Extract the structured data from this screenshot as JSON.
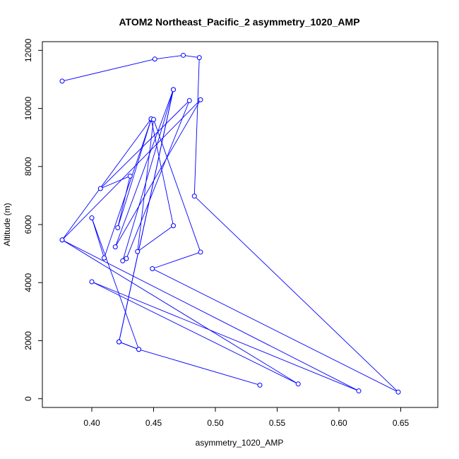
{
  "chart_data": {
    "type": "scatter",
    "title": "ATOM2 Northeast_Pacific_2 asymmetry_1020_AMP",
    "xlabel": "asymmetry_1020_AMP",
    "ylabel": "Altitude (m)",
    "xlim": [
      0.36,
      0.68
    ],
    "ylim": [
      -300,
      12300
    ],
    "x_ticks": [
      0.4,
      0.45,
      0.5,
      0.55,
      0.6,
      0.65
    ],
    "x_tick_labels": [
      "0.40",
      "0.45",
      "0.50",
      "0.55",
      "0.60",
      "0.65"
    ],
    "y_ticks": [
      0,
      2000,
      4000,
      6000,
      8000,
      10000,
      12000
    ],
    "y_tick_labels": [
      "0",
      "2000",
      "4000",
      "6000",
      "8000",
      "10000",
      "12000"
    ],
    "grid": false,
    "legend": "none",
    "series": [
      {
        "color": "#0000ff",
        "marker": "open-circle",
        "connected": true,
        "points": [
          [
            0.536,
            470
          ],
          [
            0.438,
            1700
          ],
          [
            0.422,
            1960
          ],
          [
            0.466,
            10650
          ],
          [
            0.425,
            4750
          ],
          [
            0.428,
            4830
          ],
          [
            0.479,
            10270
          ],
          [
            0.407,
            7240
          ],
          [
            0.431,
            7670
          ],
          [
            0.421,
            5890
          ],
          [
            0.448,
            9620
          ],
          [
            0.41,
            4850
          ],
          [
            0.4,
            6230
          ],
          [
            0.438,
            1700
          ],
          [
            0.422,
            1960
          ],
          [
            0.466,
            10650
          ],
          [
            0.419,
            5230
          ],
          [
            0.488,
            10300
          ],
          [
            0.376,
            5470
          ],
          [
            0.616,
            270
          ],
          [
            0.4,
            4030
          ],
          [
            0.567,
            510
          ],
          [
            0.376,
            5470
          ],
          [
            0.448,
            9640
          ],
          [
            0.466,
            5960
          ],
          [
            0.437,
            5070
          ],
          [
            0.45,
            9620
          ],
          [
            0.488,
            5050
          ],
          [
            0.449,
            4480
          ],
          [
            0.648,
            230
          ],
          [
            0.483,
            6980
          ],
          [
            0.487,
            11750
          ],
          [
            0.474,
            11830
          ],
          [
            0.451,
            11700
          ],
          [
            0.376,
            10940
          ]
        ]
      }
    ]
  }
}
